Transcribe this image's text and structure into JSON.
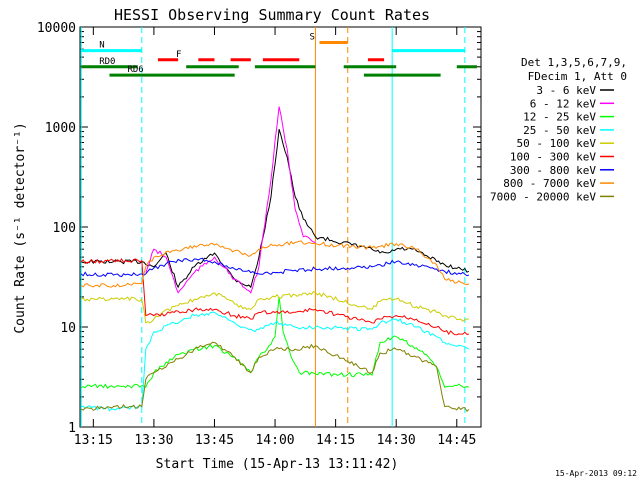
{
  "chart_data": {
    "type": "line",
    "title": "HESSI Observing Summary Count Rates",
    "xlabel": "Start Time (15-Apr-13 13:11:42)",
    "ylabel": "Count Rate (s⁻¹ detector⁻¹)",
    "y_scale": "log",
    "ylim": [
      1,
      10000
    ],
    "xlim": [
      "13:11:42",
      "14:51:00"
    ],
    "x_ticks": [
      "13:15",
      "13:30",
      "13:45",
      "14:00",
      "14:15",
      "14:30",
      "14:45"
    ],
    "y_ticks": [
      "1",
      "10",
      "100",
      "1000",
      "10000"
    ],
    "legend_header": [
      "Det 1,3,5,6,7,9,",
      "FDecim 1, Att 0"
    ],
    "legend_position": "right",
    "timestamp": "15-Apr-2013 09:12",
    "series": [
      {
        "name": "3 - 6 keV",
        "color": "#000000",
        "x": [
          "13:12",
          "13:20",
          "13:27",
          "13:30",
          "13:33",
          "13:36",
          "13:40",
          "13:45",
          "13:50",
          "13:54",
          "13:56",
          "13:59",
          "14:01",
          "14:03",
          "14:05",
          "14:07",
          "14:10",
          "14:24",
          "14:26",
          "14:28",
          "14:30",
          "14:34",
          "14:38",
          "14:42",
          "14:46",
          "14:48"
        ],
        "values": [
          45,
          45,
          45,
          40,
          55,
          25,
          40,
          55,
          30,
          25,
          50,
          200,
          950,
          500,
          200,
          120,
          80,
          60,
          55,
          55,
          60,
          60,
          50,
          42,
          38,
          36
        ]
      },
      {
        "name": "6 - 12 keV",
        "color": "#ff00ff",
        "x": [
          "13:28",
          "13:30",
          "13:33",
          "13:36",
          "13:40",
          "13:45",
          "13:50",
          "13:54",
          "13:56",
          "13:59",
          "14:01",
          "14:03",
          "14:05",
          "14:07",
          "14:10"
        ],
        "values": [
          35,
          60,
          50,
          22,
          35,
          50,
          30,
          22,
          40,
          300,
          1600,
          600,
          150,
          80,
          70
        ]
      },
      {
        "name": "12 - 25 keV",
        "color": "#00ff00",
        "x": [
          "13:12",
          "13:15",
          "13:20",
          "13:27",
          "13:28",
          "13:30",
          "13:35",
          "13:40",
          "13:45",
          "13:50",
          "13:54",
          "13:56",
          "13:58",
          "14:00",
          "14:01",
          "14:02",
          "14:04",
          "14:06",
          "14:10",
          "14:24",
          "14:26",
          "14:30",
          "14:34",
          "14:38",
          "14:40",
          "14:42",
          "14:46",
          "14:48"
        ],
        "values": [
          2.5,
          2.6,
          2.5,
          2.6,
          2.5,
          3.5,
          5,
          6,
          6.5,
          5,
          3.5,
          5,
          6,
          8,
          20,
          9,
          5,
          3.5,
          3.4,
          3.3,
          7,
          8,
          6.5,
          5,
          4,
          2.5,
          2.6,
          2.5
        ]
      },
      {
        "name": "25 - 50 keV",
        "color": "#00ffff",
        "x": [
          "13:12",
          "13:20",
          "13:27",
          "13:28",
          "13:30",
          "13:35",
          "13:40",
          "13:45",
          "13:50",
          "13:55",
          "14:00",
          "14:05",
          "14:10",
          "14:24",
          "14:26",
          "14:30",
          "14:35",
          "14:40",
          "14:42",
          "14:46",
          "14:48"
        ],
        "values": [
          1.6,
          1.5,
          1.6,
          6,
          9,
          11,
          13,
          14,
          11,
          9,
          11,
          10,
          10,
          9.5,
          11,
          12,
          10,
          8,
          7,
          6.5,
          6
        ]
      },
      {
        "name": "50 - 100 keV",
        "color": "#cccc00",
        "x": [
          "13:12",
          "13:20",
          "13:27",
          "13:28",
          "13:30",
          "13:35",
          "13:40",
          "13:45",
          "13:50",
          "13:54",
          "13:56",
          "14:00",
          "14:05",
          "14:10",
          "14:24",
          "14:26",
          "14:30",
          "14:35",
          "14:40",
          "14:42",
          "14:46",
          "14:48"
        ],
        "values": [
          19,
          19,
          19,
          11,
          12,
          16,
          19,
          22,
          17,
          15,
          19,
          20,
          21,
          22,
          15,
          18,
          19,
          16,
          14,
          13,
          12,
          12
        ]
      },
      {
        "name": "100 - 300 keV",
        "color": "#ff0000",
        "x": [
          "13:12",
          "13:20",
          "13:27",
          "13:28",
          "13:30",
          "13:35",
          "13:40",
          "13:45",
          "13:50",
          "13:54",
          "13:56",
          "14:00",
          "14:05",
          "14:10",
          "14:24",
          "14:26",
          "14:30",
          "14:35",
          "14:40",
          "14:42",
          "14:46",
          "14:48"
        ],
        "values": [
          45,
          46,
          46,
          13,
          13,
          14,
          15,
          15,
          13,
          12,
          14,
          14,
          14,
          15,
          11,
          12,
          13,
          12,
          10,
          9,
          8.5,
          8.5
        ]
      },
      {
        "name": "300 - 800 keV",
        "color": "#0000ff",
        "x": [
          "13:12",
          "13:20",
          "13:27",
          "13:28",
          "13:30",
          "13:35",
          "13:40",
          "13:45",
          "13:50",
          "13:54",
          "13:56",
          "14:00",
          "14:05",
          "14:10",
          "14:24",
          "14:26",
          "14:30",
          "14:35",
          "14:40",
          "14:42",
          "14:46",
          "14:48"
        ],
        "values": [
          34,
          33,
          34,
          34,
          39,
          45,
          48,
          45,
          38,
          35,
          34,
          35,
          37,
          38,
          40,
          42,
          45,
          42,
          38,
          36,
          34,
          33
        ]
      },
      {
        "name": "800 - 7000 keV",
        "color": "#ff8800",
        "x": [
          "13:12",
          "13:20",
          "13:27",
          "13:28",
          "13:30",
          "13:35",
          "13:40",
          "13:45",
          "13:50",
          "13:54",
          "13:56",
          "14:00",
          "14:05",
          "14:10",
          "14:24",
          "14:26",
          "14:30",
          "14:35",
          "14:40",
          "14:42",
          "14:46",
          "14:48"
        ],
        "values": [
          26,
          26,
          27,
          40,
          50,
          58,
          65,
          66,
          58,
          52,
          60,
          66,
          70,
          68,
          62,
          64,
          68,
          60,
          42,
          30,
          28,
          27
        ]
      },
      {
        "name": "7000 - 20000 keV",
        "color": "#808000",
        "x": [
          "13:12",
          "13:20",
          "13:27",
          "13:28",
          "13:30",
          "13:35",
          "13:40",
          "13:45",
          "13:50",
          "13:54",
          "13:56",
          "14:00",
          "14:05",
          "14:10",
          "14:24",
          "14:26",
          "14:30",
          "14:35",
          "14:40",
          "14:42",
          "14:46",
          "14:48"
        ],
        "values": [
          1.5,
          1.6,
          1.6,
          3,
          3.5,
          4.5,
          6,
          7,
          5,
          3.5,
          5,
          6,
          6,
          6.5,
          3.5,
          5.5,
          6,
          5,
          4,
          1.6,
          1.5,
          1.5
        ]
      }
    ],
    "flag_bars": [
      {
        "label": "N",
        "color": "#00ffff",
        "value": 5800,
        "segments": [
          [
            "13:12",
            "13:27"
          ],
          [
            "14:29",
            "14:47"
          ]
        ]
      },
      {
        "label": "F",
        "color": "#ff0000",
        "value": 4700,
        "segments": [
          [
            "13:31",
            "13:36"
          ],
          [
            "13:41",
            "13:45"
          ],
          [
            "13:49",
            "13:54"
          ],
          [
            "13:57",
            "14:06"
          ],
          [
            "14:23",
            "14:27"
          ]
        ]
      },
      {
        "label": "RD0",
        "color": "#008000",
        "value": 4000,
        "segments": [
          [
            "13:12",
            "13:26"
          ],
          [
            "13:38",
            "13:51"
          ],
          [
            "13:55",
            "14:10"
          ],
          [
            "14:17",
            "14:30"
          ],
          [
            "14:45",
            "14:50"
          ]
        ]
      },
      {
        "label": "RD6",
        "color": "#008000",
        "value": 3300,
        "segments": [
          [
            "13:19",
            "13:50"
          ],
          [
            "14:22",
            "14:41"
          ]
        ]
      },
      {
        "label": "S",
        "color": "#ff8800",
        "value": 7000,
        "segments": [
          [
            "14:11",
            "14:18"
          ]
        ]
      }
    ],
    "vlines": [
      {
        "time": "13:12",
        "color": "#00ffff",
        "style": "solid"
      },
      {
        "time": "13:27",
        "color": "#00ffff",
        "style": "dashed"
      },
      {
        "time": "14:10",
        "color": "#ff8800",
        "style": "solid"
      },
      {
        "time": "14:18",
        "color": "#ff8800",
        "style": "dashed"
      },
      {
        "time": "14:29",
        "color": "#00ffff",
        "style": "solid"
      },
      {
        "time": "14:47",
        "color": "#00ffff",
        "style": "dashed"
      }
    ]
  }
}
